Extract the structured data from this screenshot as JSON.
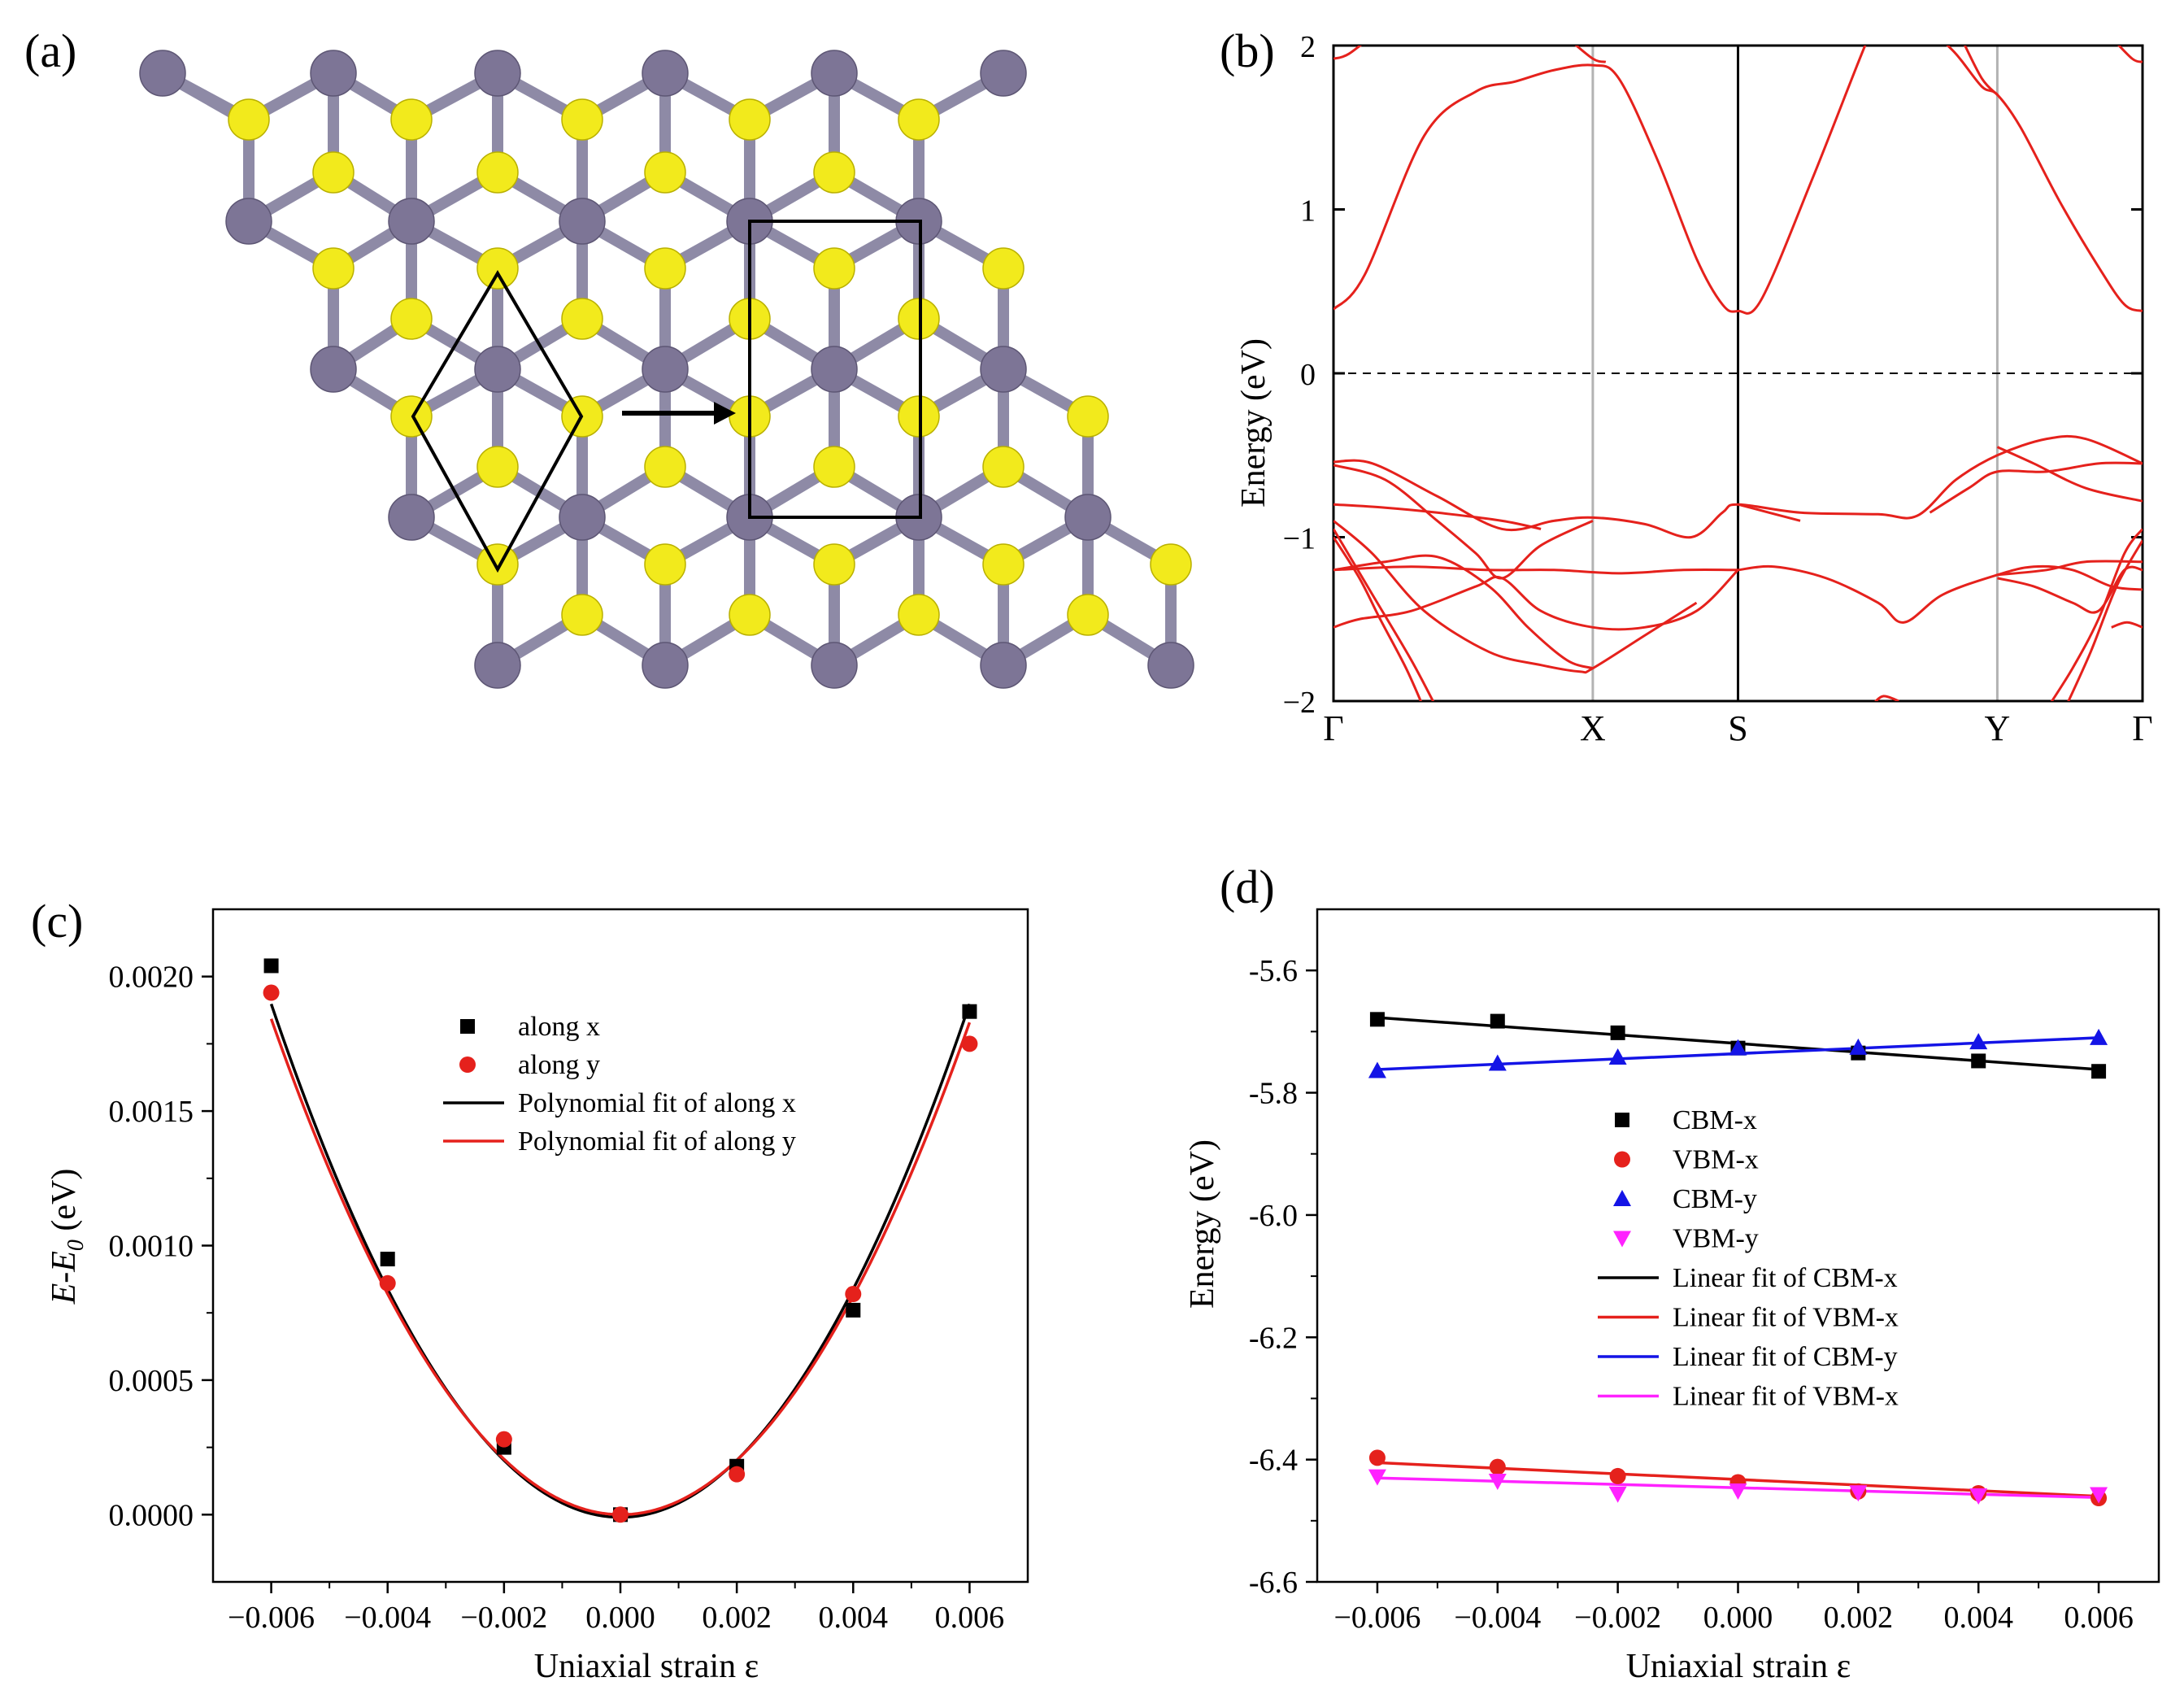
{
  "colors": {
    "metal_atom": "#7d7596",
    "metal_bond": "#8e8aa6",
    "chalcogen_atom": "#f2ea1c",
    "band_line": "#e5211c",
    "series_black": "#000000",
    "series_red": "#e5211c",
    "series_blue": "#1414e6",
    "series_magenta": "#ff22ff"
  },
  "panel_a": {
    "label": "(a)",
    "icons": [
      "lattice-structure-icon",
      "rhombus-cell-icon",
      "rectangle-cell-icon",
      "arrow-icon"
    ]
  },
  "panel_b": {
    "label": "(b)",
    "ylabel": "Energy (eV)",
    "yticks": [
      "2",
      "1",
      "0",
      "−1",
      "−2"
    ],
    "ylim": [
      -2,
      2
    ],
    "kpoints": [
      "Γ",
      "X",
      "S",
      "Y",
      "Γ"
    ],
    "kpos": [
      0,
      1.0,
      1.56,
      2.56,
      3.12
    ]
  },
  "chart_data": [
    {
      "panel": "c",
      "label": "(c)",
      "type": "scatter",
      "xlabel": "Uniaxial strain ε",
      "ylabel_main": "E-E",
      "ylabel_sub": "0",
      "ylabel_unit": " (eV)",
      "xlim": [
        -0.007,
        0.007
      ],
      "ylim": [
        -0.00025,
        0.00225
      ],
      "xticks": [
        -0.006,
        -0.004,
        -0.002,
        0.0,
        0.002,
        0.004,
        0.006
      ],
      "xtick_labels": [
        "−0.006",
        "−0.004",
        "−0.002",
        "0.000",
        "0.002",
        "0.004",
        "0.006"
      ],
      "yticks": [
        0.0,
        0.0005,
        0.001,
        0.0015,
        0.002
      ],
      "ytick_labels": [
        "0.0000",
        "0.0005",
        "0.0010",
        "0.0015",
        "0.0020"
      ],
      "x": [
        -0.006,
        -0.004,
        -0.002,
        0.0,
        0.002,
        0.004,
        0.006
      ],
      "series": [
        {
          "name": "along x",
          "marker": "square",
          "color": "#000000",
          "values": [
            0.00204,
            0.00095,
            0.00025,
            0.0,
            0.00018,
            0.00076,
            0.00187
          ]
        },
        {
          "name": "along y",
          "marker": "circle",
          "color": "#e5211c",
          "values": [
            0.00194,
            0.00086,
            0.00028,
            0.0,
            0.00015,
            0.00082,
            0.00175
          ]
        }
      ],
      "fits": [
        {
          "name": "Polynomial fit of along x",
          "color": "#000000",
          "a": 53.0,
          "b": 0.0,
          "c": -1e-05
        },
        {
          "name": "Polynomial fit of along y",
          "color": "#e5211c",
          "a": 51.0,
          "b": -0.0011,
          "c": 0.0
        }
      ]
    },
    {
      "panel": "d",
      "label": "(d)",
      "type": "scatter",
      "xlabel": "Uniaxial strain ε",
      "ylabel": "Energy (eV)",
      "xlim": [
        -0.007,
        0.007
      ],
      "ylim": [
        -6.6,
        -5.5
      ],
      "xticks": [
        -0.006,
        -0.004,
        -0.002,
        0.0,
        0.002,
        0.004,
        0.006
      ],
      "xtick_labels": [
        "−0.006",
        "−0.004",
        "−0.002",
        "0.000",
        "0.002",
        "0.004",
        "0.006"
      ],
      "yticks": [
        -5.6,
        -5.8,
        -6.0,
        -6.2,
        -6.4,
        -6.6
      ],
      "ytick_labels": [
        "-5.6",
        "-5.8",
        "-6.0",
        "-6.2",
        "-6.4",
        "-6.6"
      ],
      "x": [
        -0.006,
        -0.004,
        -0.002,
        0.0,
        0.002,
        0.004,
        0.006
      ],
      "series": [
        {
          "name": "CBM-x",
          "marker": "square",
          "color": "#000000",
          "values": [
            -5.68,
            -5.683,
            -5.702,
            -5.727,
            -5.735,
            -5.748,
            -5.765
          ]
        },
        {
          "name": "VBM-x",
          "marker": "circle",
          "color": "#e5211c",
          "values": [
            -6.397,
            -6.412,
            -6.427,
            -6.437,
            -6.452,
            -6.455,
            -6.463
          ]
        },
        {
          "name": "CBM-y",
          "marker": "triangle-up",
          "color": "#1414e6",
          "values": [
            -5.764,
            -5.752,
            -5.742,
            -5.727,
            -5.726,
            -5.717,
            -5.71
          ]
        },
        {
          "name": "VBM-y",
          "marker": "triangle-down",
          "color": "#ff22ff",
          "values": [
            -6.428,
            -6.435,
            -6.456,
            -6.451,
            -6.454,
            -6.459,
            -6.457
          ]
        }
      ],
      "fits": [
        {
          "name": "Linear fit of CBM-x",
          "color": "#000000",
          "y0": -5.677,
          "y1": -5.762
        },
        {
          "name": "Linear fit of VBM-x",
          "color": "#e5211c",
          "y0": -6.405,
          "y1": -6.46
        },
        {
          "name": "Linear fit of CBM-y",
          "color": "#1414e6",
          "y0": -5.762,
          "y1": -5.71
        },
        {
          "name": "Linear fit of VBM-x",
          "color": "#ff22ff",
          "y0": -6.43,
          "y1": -6.462
        }
      ]
    }
  ]
}
